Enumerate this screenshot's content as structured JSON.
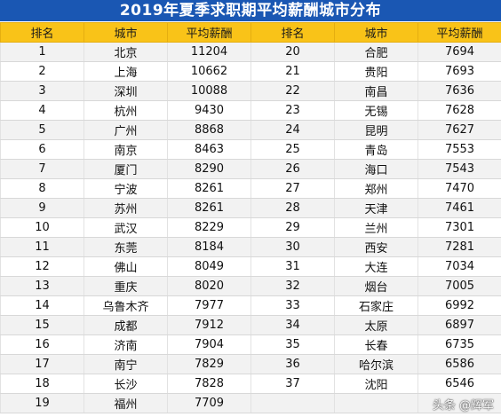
{
  "title": "2019年夏季求职期平均薪酬城市分布",
  "headers": {
    "rank": "排名",
    "city": "城市",
    "salary": "平均薪酬"
  },
  "left": [
    {
      "rank": "1",
      "city": "北京",
      "salary": "11204"
    },
    {
      "rank": "2",
      "city": "上海",
      "salary": "10662"
    },
    {
      "rank": "3",
      "city": "深圳",
      "salary": "10088"
    },
    {
      "rank": "4",
      "city": "杭州",
      "salary": "9430"
    },
    {
      "rank": "5",
      "city": "广州",
      "salary": "8868"
    },
    {
      "rank": "6",
      "city": "南京",
      "salary": "8463"
    },
    {
      "rank": "7",
      "city": "厦门",
      "salary": "8290"
    },
    {
      "rank": "8",
      "city": "宁波",
      "salary": "8261"
    },
    {
      "rank": "9",
      "city": "苏州",
      "salary": "8261"
    },
    {
      "rank": "10",
      "city": "武汉",
      "salary": "8229"
    },
    {
      "rank": "11",
      "city": "东莞",
      "salary": "8184"
    },
    {
      "rank": "12",
      "city": "佛山",
      "salary": "8049"
    },
    {
      "rank": "13",
      "city": "重庆",
      "salary": "8020"
    },
    {
      "rank": "14",
      "city": "乌鲁木齐",
      "salary": "7977"
    },
    {
      "rank": "15",
      "city": "成都",
      "salary": "7912"
    },
    {
      "rank": "16",
      "city": "济南",
      "salary": "7904"
    },
    {
      "rank": "17",
      "city": "南宁",
      "salary": "7829"
    },
    {
      "rank": "18",
      "city": "长沙",
      "salary": "7828"
    },
    {
      "rank": "19",
      "city": "福州",
      "salary": "7709"
    }
  ],
  "right": [
    {
      "rank": "20",
      "city": "合肥",
      "salary": "7694"
    },
    {
      "rank": "21",
      "city": "贵阳",
      "salary": "7693"
    },
    {
      "rank": "22",
      "city": "南昌",
      "salary": "7636"
    },
    {
      "rank": "23",
      "city": "无锡",
      "salary": "7628"
    },
    {
      "rank": "24",
      "city": "昆明",
      "salary": "7627"
    },
    {
      "rank": "25",
      "city": "青岛",
      "salary": "7553"
    },
    {
      "rank": "26",
      "city": "海口",
      "salary": "7543"
    },
    {
      "rank": "27",
      "city": "郑州",
      "salary": "7470"
    },
    {
      "rank": "28",
      "city": "天津",
      "salary": "7461"
    },
    {
      "rank": "29",
      "city": "兰州",
      "salary": "7301"
    },
    {
      "rank": "30",
      "city": "西安",
      "salary": "7281"
    },
    {
      "rank": "31",
      "city": "大连",
      "salary": "7034"
    },
    {
      "rank": "32",
      "city": "烟台",
      "salary": "7005"
    },
    {
      "rank": "33",
      "city": "石家庄",
      "salary": "6992"
    },
    {
      "rank": "34",
      "city": "太原",
      "salary": "6897"
    },
    {
      "rank": "35",
      "city": "长春",
      "salary": "6735"
    },
    {
      "rank": "36",
      "city": "哈尔滨",
      "salary": "6586"
    },
    {
      "rank": "37",
      "city": "沈阳",
      "salary": "6546"
    },
    {
      "rank": "",
      "city": "",
      "salary": ""
    }
  ],
  "watermark": "头条 @辉军",
  "colors": {
    "title_bg": "#1a57b3",
    "header_bg": "#f9c318",
    "row_alt_bg": "#f2f2f2"
  }
}
